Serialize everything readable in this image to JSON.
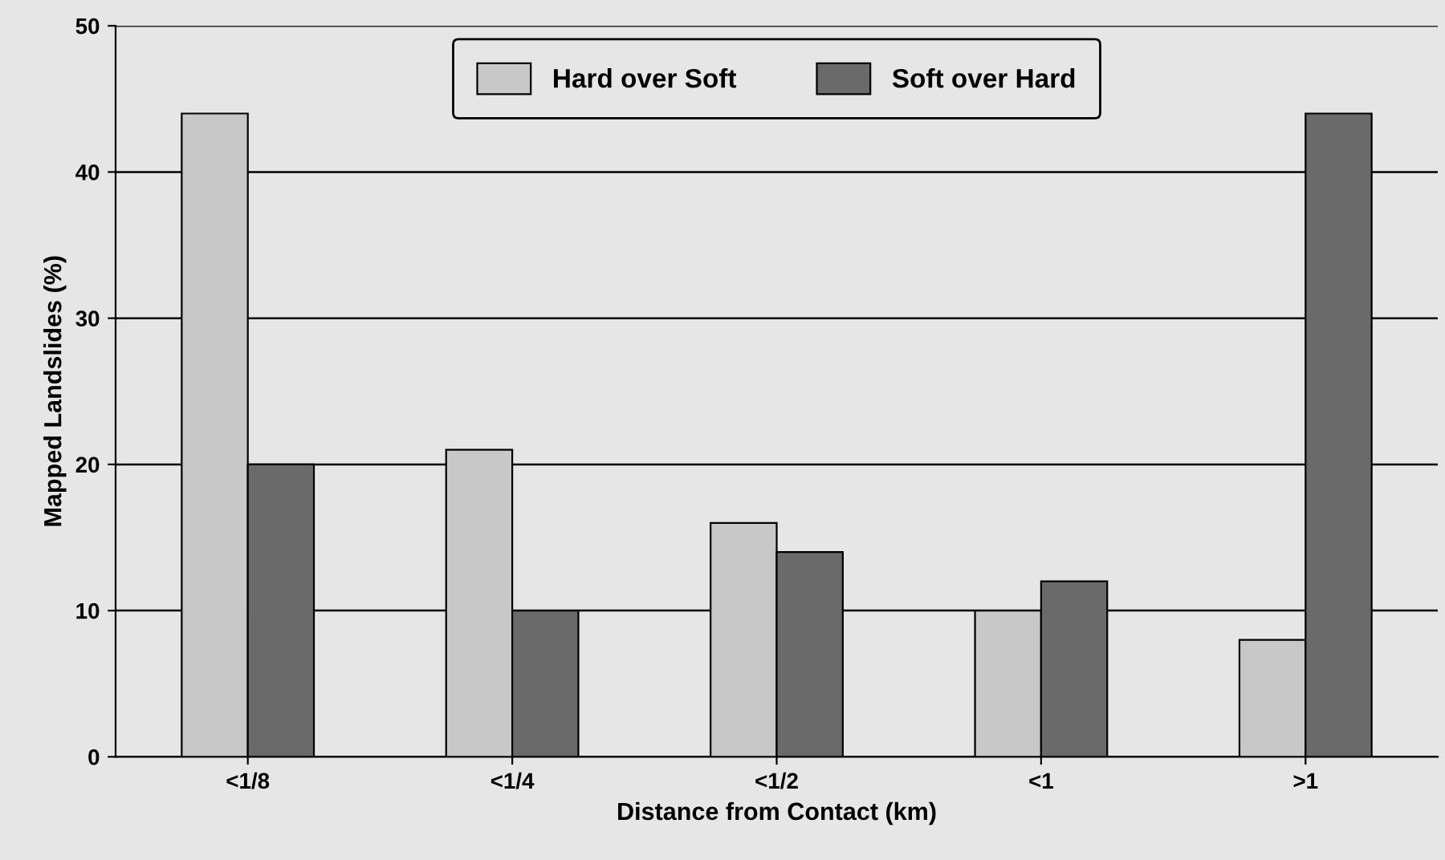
{
  "chart_data": {
    "type": "bar",
    "xlabel": "Distance from Contact (km)",
    "ylabel": "Mapped Landslides (%)",
    "categories": [
      "<1/8",
      "<1/4",
      "<1/2",
      "<1",
      ">1"
    ],
    "series": [
      {
        "name": "Hard over Soft",
        "color": "#c8c8c8",
        "values": [
          44,
          21,
          16,
          10,
          8
        ]
      },
      {
        "name": "Soft over Hard",
        "color": "#6a6a6a",
        "values": [
          20,
          10,
          14,
          12,
          44
        ]
      }
    ],
    "ylim": [
      0,
      50
    ],
    "yticks": [
      0,
      10,
      20,
      30,
      40,
      50
    ],
    "grid": "y",
    "legend": "top"
  }
}
